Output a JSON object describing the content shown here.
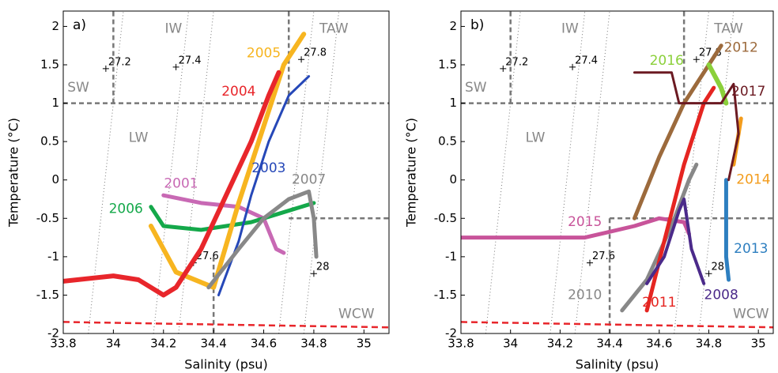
{
  "chart_data": [
    {
      "type": "line",
      "panel": "a)",
      "xlabel": "Salinity (psu)",
      "ylabel": "Temperature (°C)",
      "xlim": [
        33.8,
        35.1
      ],
      "ylim": [
        -2,
        2.2
      ],
      "xticks": [
        33.8,
        34,
        34.2,
        34.4,
        34.6,
        34.8,
        35
      ],
      "yticks": [
        -2,
        -1.5,
        -1,
        -0.5,
        0,
        0.5,
        1,
        1.5,
        2
      ],
      "annotations": [
        "SW",
        "IW",
        "TAW",
        "LW",
        "WCW"
      ],
      "isopycnals": [
        {
          "label": "27.2",
          "x": [
            33.9,
            34.04
          ],
          "marker": [
            33.97,
            1.45
          ]
        },
        {
          "label": "27.4",
          "x": [
            34.16,
            34.3
          ],
          "marker": [
            34.25,
            1.47
          ]
        },
        {
          "label": "27.6",
          "x": [
            34.26,
            34.4
          ],
          "marker": [
            34.32,
            -1.08
          ]
        },
        {
          "label": "27.8",
          "x": [
            34.66,
            34.8
          ],
          "marker": [
            34.75,
            1.57
          ]
        },
        {
          "label": "28",
          "x": [
            34.76,
            34.9
          ],
          "marker": [
            34.8,
            -1.22
          ]
        }
      ],
      "boundaries": [
        {
          "x": [
            33.8,
            35.1
          ],
          "y": [
            1,
            1
          ]
        },
        {
          "x": [
            34,
            34
          ],
          "y": [
            1,
            2.2
          ]
        },
        {
          "x": [
            34.7,
            34.7
          ],
          "y": [
            1,
            2.2
          ]
        },
        {
          "x": [
            34.7,
            35.1
          ],
          "y": [
            -0.5,
            -0.5
          ]
        },
        {
          "x": [
            34.4,
            34.4
          ],
          "y": [
            -1,
            -2
          ]
        }
      ],
      "freezing": {
        "color": "#e8262b",
        "x": [
          33.8,
          35.1
        ],
        "y": [
          -1.85,
          -1.92
        ]
      },
      "series": [
        {
          "name": "2001",
          "color": "#c869b4",
          "width": 5,
          "x": [
            34.2,
            34.35,
            34.5,
            34.6,
            34.65,
            34.68
          ],
          "y": [
            -0.2,
            -0.3,
            -0.35,
            -0.5,
            -0.9,
            -0.95
          ]
        },
        {
          "name": "2006",
          "color": "#14a84a",
          "width": 5,
          "x": [
            34.15,
            34.2,
            34.35,
            34.55,
            34.7,
            34.8
          ],
          "y": [
            -0.35,
            -0.6,
            -0.65,
            -0.55,
            -0.4,
            -0.3
          ]
        },
        {
          "name": "2005",
          "color": "#f7b520",
          "width": 6,
          "x": [
            34.15,
            34.25,
            34.4,
            34.5,
            34.6,
            34.68,
            34.76
          ],
          "y": [
            -0.6,
            -1.2,
            -1.4,
            -0.3,
            0.7,
            1.5,
            1.9
          ]
        },
        {
          "name": "2004",
          "color": "#e8262b",
          "width": 6,
          "x": [
            33.8,
            34,
            34.1,
            34.2,
            34.25,
            34.35,
            34.45,
            34.55,
            34.62,
            34.66
          ],
          "y": [
            -1.32,
            -1.25,
            -1.3,
            -1.5,
            -1.4,
            -0.9,
            -0.2,
            0.5,
            1.1,
            1.4
          ]
        },
        {
          "name": "2003",
          "color": "#2648b8",
          "width": 3,
          "x": [
            34.42,
            34.5,
            34.55,
            34.62,
            34.7,
            34.78
          ],
          "y": [
            -1.5,
            -0.8,
            -0.2,
            0.5,
            1.1,
            1.35
          ]
        },
        {
          "name": "2007",
          "color": "#888888",
          "width": 5,
          "x": [
            34.38,
            34.5,
            34.6,
            34.7,
            34.78,
            34.8,
            34.81
          ],
          "y": [
            -1.4,
            -0.9,
            -0.5,
            -0.25,
            -0.15,
            -0.5,
            -1
          ]
        }
      ]
    },
    {
      "type": "line",
      "panel": "b)",
      "xlabel": "Salinity (psu)",
      "ylabel": "Temperature (°C)",
      "xlim": [
        33.8,
        35.06
      ],
      "ylim": [
        -2,
        2.2
      ],
      "xticks": [
        33.8,
        34,
        34.2,
        34.4,
        34.6,
        34.8,
        35
      ],
      "yticks": [
        -2,
        -1.5,
        -1,
        -0.5,
        0,
        0.5,
        1,
        1.5,
        2
      ],
      "annotations": [
        "SW",
        "IW",
        "TAW",
        "LW",
        "WCW"
      ],
      "isopycnals": [
        {
          "label": "27.2",
          "x": [
            33.9,
            34.04
          ],
          "marker": [
            33.97,
            1.45
          ]
        },
        {
          "label": "27.4",
          "x": [
            34.16,
            34.3
          ],
          "marker": [
            34.25,
            1.47
          ]
        },
        {
          "label": "27.6",
          "x": [
            34.26,
            34.4
          ],
          "marker": [
            34.32,
            -1.08
          ]
        },
        {
          "label": "27.8",
          "x": [
            34.66,
            34.8
          ],
          "marker": [
            34.75,
            1.57
          ]
        },
        {
          "label": "28",
          "x": [
            34.76,
            34.9
          ],
          "marker": [
            34.8,
            -1.22
          ]
        }
      ],
      "boundaries": [
        {
          "x": [
            33.8,
            35.06
          ],
          "y": [
            1,
            1
          ]
        },
        {
          "x": [
            34,
            34
          ],
          "y": [
            1,
            2.2
          ]
        },
        {
          "x": [
            34.7,
            34.7
          ],
          "y": [
            1,
            2.2
          ]
        },
        {
          "x": [
            34.4,
            35.06
          ],
          "y": [
            -0.5,
            -0.5
          ]
        },
        {
          "x": [
            34.4,
            34.4
          ],
          "y": [
            -0.5,
            -2
          ]
        }
      ],
      "freezing": {
        "color": "#e8262b",
        "x": [
          33.8,
          35.06
        ],
        "y": [
          -1.85,
          -1.92
        ]
      },
      "series": [
        {
          "name": "2015",
          "color": "#c8549a",
          "width": 5,
          "x": [
            33.8,
            34.3,
            34.5,
            34.6,
            34.7,
            34.72
          ],
          "y": [
            -0.75,
            -0.75,
            -0.6,
            -0.5,
            -0.55,
            -0.7
          ]
        },
        {
          "name": "2010",
          "color": "#888888",
          "width": 5,
          "x": [
            34.45,
            34.55,
            34.65,
            34.72,
            34.75
          ],
          "y": [
            -1.7,
            -1.3,
            -0.6,
            0,
            0.2
          ]
        },
        {
          "name": "2011",
          "color": "#e52521",
          "width": 5,
          "x": [
            34.55,
            34.62,
            34.7,
            34.78,
            34.82
          ],
          "y": [
            -1.7,
            -0.8,
            0.2,
            1,
            1.2
          ]
        },
        {
          "name": "2008",
          "color": "#4b2a8a",
          "width": 4,
          "x": [
            34.55,
            34.62,
            34.68,
            34.7,
            34.73,
            34.78
          ],
          "y": [
            -1.35,
            -1,
            -0.4,
            -0.25,
            -0.9,
            -1.35
          ]
        },
        {
          "name": "2013",
          "color": "#2e7fc0",
          "width": 5,
          "x": [
            34.87,
            34.87,
            34.88
          ],
          "y": [
            0,
            -1,
            -1.3
          ]
        },
        {
          "name": "2014",
          "color": "#f39c1c",
          "width": 5,
          "x": [
            34.9,
            34.93
          ],
          "y": [
            0.2,
            0.8
          ]
        },
        {
          "name": "2012",
          "color": "#9c6a3c",
          "width": 5,
          "x": [
            34.5,
            34.6,
            34.7,
            34.8,
            34.85
          ],
          "y": [
            -0.5,
            0.3,
            1,
            1.5,
            1.75
          ]
        },
        {
          "name": "2016",
          "color": "#8bd03a",
          "width": 6,
          "x": [
            34.8,
            34.85,
            34.87
          ],
          "y": [
            1.5,
            1.2,
            1
          ]
        },
        {
          "name": "2017",
          "color": "#6b1a22",
          "width": 3,
          "x": [
            34.5,
            34.65,
            34.68,
            34.85,
            34.9,
            34.92,
            34.88
          ],
          "y": [
            1.4,
            1.4,
            1,
            1,
            1.25,
            0.6,
            0
          ]
        }
      ]
    }
  ]
}
